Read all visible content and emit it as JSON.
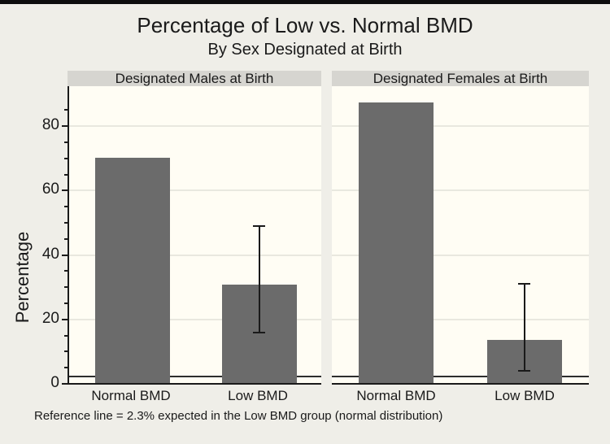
{
  "window": {
    "top_edge_color": "#0d0d0d",
    "background_color": "#efeee8"
  },
  "chart_data": {
    "type": "bar",
    "title": "Percentage of Low vs. Normal BMD",
    "subtitle": "By Sex Designated at Birth",
    "ylabel": "Percentage",
    "ylim": [
      0,
      92
    ],
    "yticks": [
      0,
      20,
      40,
      60,
      80
    ],
    "minor_ticks": [
      5,
      10,
      15,
      25,
      30,
      35,
      45,
      50,
      55,
      65,
      70,
      75,
      85
    ],
    "grid": true,
    "legend": "none",
    "categories": [
      "Normal BMD",
      "Low BMD"
    ],
    "panels": [
      {
        "label": "Designated Males at Birth",
        "values": [
          70,
          30.5
        ],
        "ci": [
          null,
          [
            16,
            49
          ]
        ]
      },
      {
        "label": "Designated Females at Birth",
        "values": [
          87,
          13.5
        ],
        "ci": [
          null,
          [
            4,
            31
          ]
        ]
      }
    ],
    "reference_line": {
      "value": 2.3,
      "label": "Reference line = 2.3% expected in the Low BMD group (normal distribution)"
    },
    "bar_color": "#6b6b6b",
    "plot_background": "#fffdf4",
    "gridline_color": "#e9e8df",
    "header_background": "#d6d5d0"
  }
}
